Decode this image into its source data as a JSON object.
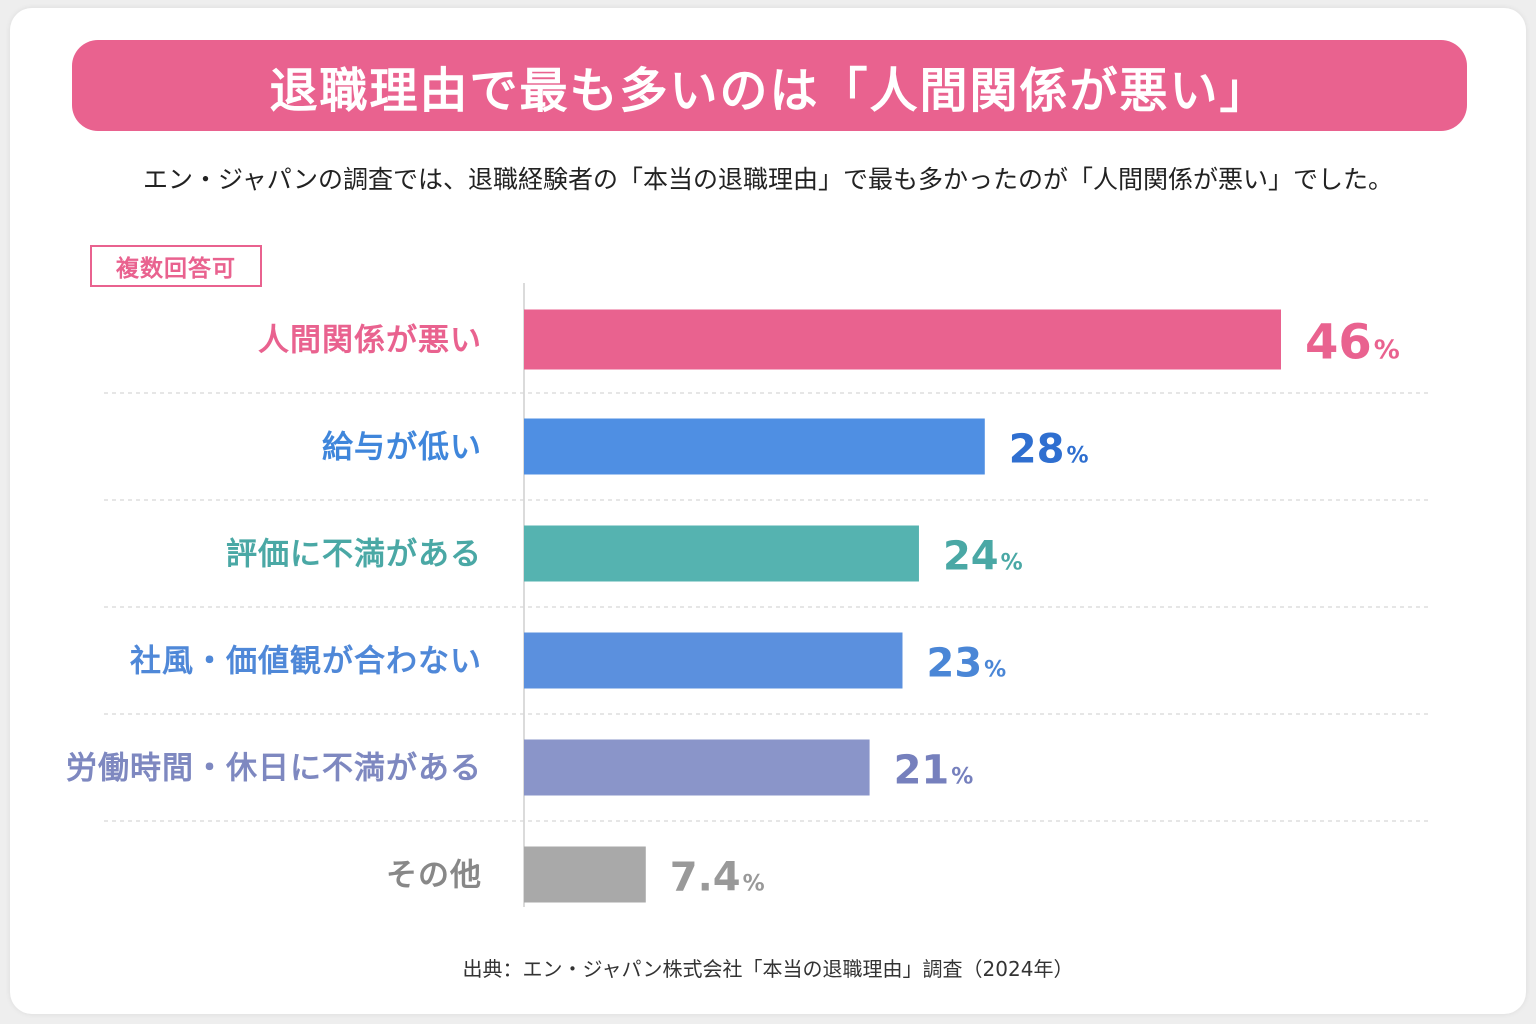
{
  "title": "退職理由で最も多いのは「人間関係が悪い」",
  "subtitle": "エン・ジャパンの調査では、退職経験者の「本当の退職理由」で最も多かったのが「人間関係が悪い」でした。",
  "badge": "複数回答可",
  "source": "出典：エン・ジャパン株式会社「本当の退職理由」調査（2024年）",
  "colors": {
    "accent": "#e9628f",
    "blue": "#4f8fe3",
    "teal": "#55b3b0",
    "blue2": "#5b90de",
    "lavender": "#8a95c9",
    "gray": "#a9a9a9"
  },
  "chart_data": {
    "type": "bar",
    "orientation": "horizontal",
    "categories": [
      "人間関係が悪い",
      "給与が低い",
      "評価に不満がある",
      "社風・価値観が合わない",
      "労働時間・休日に不満がある",
      "その他"
    ],
    "values": [
      46,
      28,
      24,
      23,
      21,
      7.4
    ],
    "value_labels": [
      "46",
      "28",
      "24",
      "23",
      "21",
      "7.4"
    ],
    "unit": "%",
    "bar_colors": [
      "#e9628f",
      "#4f8fe3",
      "#55b3b0",
      "#5b90de",
      "#8a95c9",
      "#a9a9a9"
    ],
    "label_colors": [
      "#e9628f",
      "#3f86db",
      "#4aa8a5",
      "#4f88d8",
      "#7e88c0",
      "#888888"
    ],
    "value_colors": [
      "#e9628f",
      "#2f6fd0",
      "#4aa8a5",
      "#4a86d6",
      "#7680bd",
      "#999999"
    ],
    "xlim": [
      0,
      50
    ],
    "title": "",
    "xlabel": "",
    "ylabel": "",
    "grid": false,
    "legend": "none"
  }
}
